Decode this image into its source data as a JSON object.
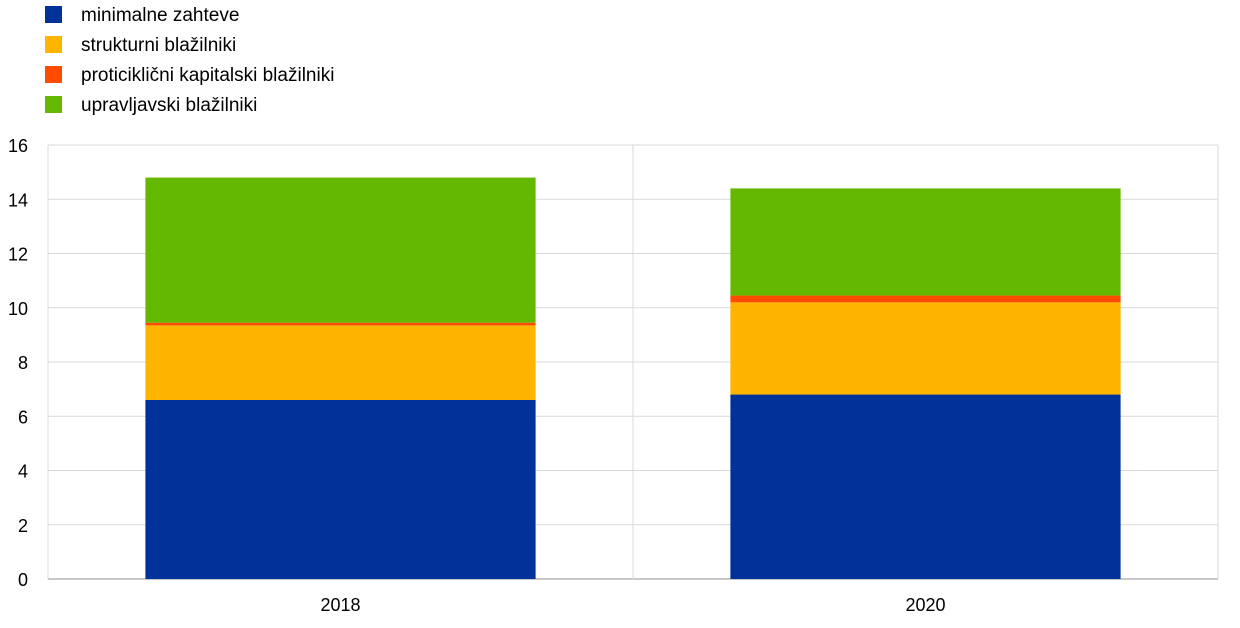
{
  "chart_data": {
    "type": "bar",
    "stacked": true,
    "categories": [
      "2018",
      "2020"
    ],
    "series": [
      {
        "name": "minimalne zahteve",
        "color": "#003299",
        "values": [
          6.6,
          6.8
        ]
      },
      {
        "name": "strukturni blažilniki",
        "color": "#FFB400",
        "values": [
          2.75,
          3.4
        ]
      },
      {
        "name": "proticiklični kapitalski blažilniki",
        "color": "#FF4B00",
        "values": [
          0.1,
          0.25
        ]
      },
      {
        "name": "upravljavski blažilniki",
        "color": "#65B800",
        "values": [
          5.35,
          3.95
        ]
      }
    ],
    "title": "",
    "xlabel": "",
    "ylabel": "",
    "ylim": [
      0,
      16
    ],
    "yticks": [
      0,
      2,
      4,
      6,
      8,
      10,
      12,
      14,
      16
    ],
    "grid": true,
    "legend_position": "top-left"
  }
}
